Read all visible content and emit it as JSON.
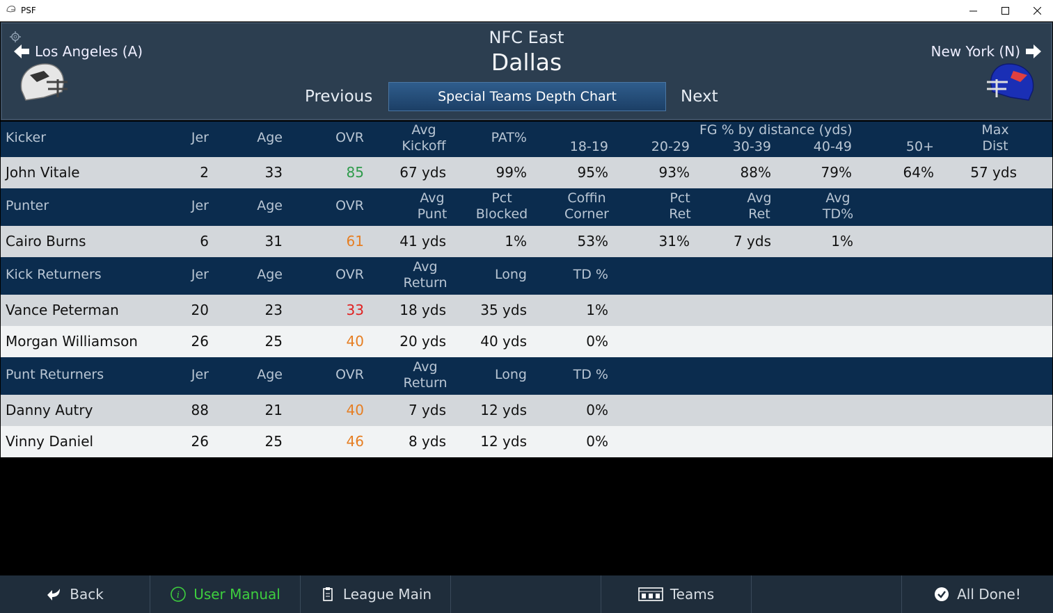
{
  "window": {
    "title": "PSF"
  },
  "header": {
    "division": "NFC East",
    "team": "Dallas",
    "prev_team": "Los Angeles (A)",
    "next_team": "New York (N)",
    "previous_label": "Previous",
    "next_label": "Next",
    "chart_label": "Special Teams Depth Chart",
    "helmet_left_color": "#e6e6e6",
    "helmet_right_color": "#1a2fb5"
  },
  "kicker": {
    "headers": {
      "name": "Kicker",
      "jer": "Jer",
      "age": "Age",
      "ovr": "OVR",
      "avg1": "Avg",
      "avg2": "Kickoff",
      "pat": "PAT%",
      "fg_title": "FG % by distance (yds)",
      "d1": "18-19",
      "d2": "20-29",
      "d3": "30-39",
      "d4": "40-49",
      "d5": "50+",
      "max1": "Max",
      "max2": "Dist"
    },
    "rows": [
      {
        "name": "John Vitale",
        "jer": "2",
        "age": "33",
        "ovr": "85",
        "kick": "67 yds",
        "pat": "99%",
        "d1": "95%",
        "d2": "93%",
        "d3": "88%",
        "d4": "79%",
        "d5": "64%",
        "max": "57 yds"
      }
    ]
  },
  "punter": {
    "headers": {
      "name": "Punter",
      "jer": "Jer",
      "age": "Age",
      "ovr": "OVR",
      "a1": "Avg",
      "a2": "Punt",
      "b1": "Pct",
      "b2": "Blocked",
      "c1": "Coffin",
      "c2": "Corner",
      "d1": "Pct",
      "d2": "Ret",
      "e1": "Avg",
      "e2": "Ret",
      "f1": "Avg",
      "f2": "TD%"
    },
    "rows": [
      {
        "name": "Cairo Burns",
        "jer": "6",
        "age": "31",
        "ovr": "61",
        "punt": "41 yds",
        "blocked": "1%",
        "coffin": "53%",
        "pctret": "31%",
        "avgret": "7 yds",
        "td": "1%"
      }
    ]
  },
  "kick_returners": {
    "headers": {
      "name": "Kick Returners",
      "jer": "Jer",
      "age": "Age",
      "ovr": "OVR",
      "a1": "Avg",
      "a2": "Return",
      "long": "Long",
      "td": "TD %"
    },
    "rows": [
      {
        "name": "Vance Peterman",
        "jer": "20",
        "age": "23",
        "ovr": "33",
        "ret": "18 yds",
        "long": "35 yds",
        "td": "1%"
      },
      {
        "name": "Morgan Williamson",
        "jer": "26",
        "age": "25",
        "ovr": "40",
        "ret": "20 yds",
        "long": "40 yds",
        "td": "0%"
      }
    ]
  },
  "punt_returners": {
    "headers": {
      "name": "Punt Returners",
      "jer": "Jer",
      "age": "Age",
      "ovr": "OVR",
      "a1": "Avg",
      "a2": "Return",
      "long": "Long",
      "td": "TD %"
    },
    "rows": [
      {
        "name": "Danny Autry",
        "jer": "88",
        "age": "21",
        "ovr": "40",
        "ret": "7 yds",
        "long": "12 yds",
        "td": "0%"
      },
      {
        "name": "Vinny Daniel",
        "jer": "26",
        "age": "25",
        "ovr": "46",
        "ret": "8 yds",
        "long": "12 yds",
        "td": "0%"
      }
    ]
  },
  "footer": {
    "back": "Back",
    "manual": "User Manual",
    "league": "League Main",
    "teams": "Teams",
    "done": "All Done!"
  },
  "colors": {
    "ovr_high": "#2e9b4b",
    "ovr_mid": "#e67e22",
    "ovr_low": "#e02020"
  }
}
